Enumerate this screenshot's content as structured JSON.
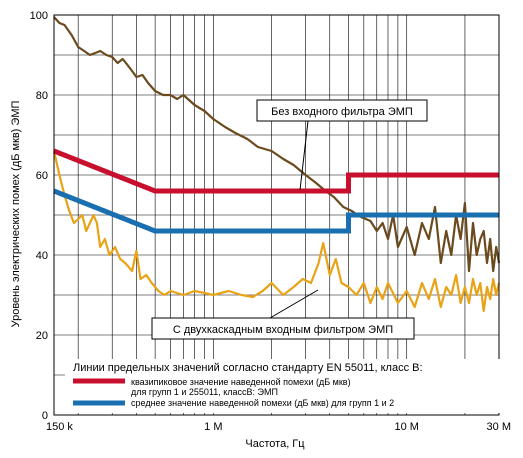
{
  "chart_data": {
    "type": "line",
    "title": "",
    "xlabel": "Частота, Гц",
    "ylabel": "Уровень электрических помех (дБ мкв) ЭМП",
    "x_scale": "log",
    "xlim": [
      150000,
      30000000
    ],
    "ylim": [
      0,
      100
    ],
    "grid": true,
    "x_ticks": [
      {
        "value": 150000,
        "label": "150 k"
      },
      {
        "value": 1000000,
        "label": "1 M"
      },
      {
        "value": 10000000,
        "label": "10 M"
      },
      {
        "value": 30000000,
        "label": "30 M"
      }
    ],
    "y_ticks": [
      {
        "value": 0,
        "label": "0"
      },
      {
        "value": 20,
        "label": "20"
      },
      {
        "value": 40,
        "label": "40"
      },
      {
        "value": 60,
        "label": "60"
      },
      {
        "value": 80,
        "label": "80"
      },
      {
        "value": 100,
        "label": "100"
      }
    ],
    "limit_lines": [
      {
        "name": "квазипиковое значение наведенной помехи (дБ мкв) для групп 1 и 255011, классВ: ЭМП",
        "color": "#c8102e",
        "x": [
          150000,
          500000,
          500000,
          5000000,
          5000000,
          30000000
        ],
        "y": [
          66,
          56,
          56,
          56,
          60,
          60
        ],
        "curve_first_segment": true
      },
      {
        "name": "среднее значение наведенной помехи (дБ мкв) для групп 1 и 2",
        "color": "#1a6fb0",
        "x": [
          150000,
          500000,
          500000,
          5000000,
          5000000,
          30000000
        ],
        "y": [
          56,
          46,
          46,
          46,
          50,
          50
        ],
        "curve_first_segment": true
      }
    ],
    "series": [
      {
        "color": "#6b4a1e",
        "x": [
          150000,
          160000,
          170000,
          185000,
          200000,
          215000,
          230000,
          245000,
          260000,
          280000,
          300000,
          320000,
          340000,
          360000,
          380000,
          400000,
          430000,
          460000,
          500000,
          550000,
          600000,
          650000,
          700000,
          800000,
          900000,
          1000000,
          1150000,
          1300000,
          1500000,
          1700000,
          2000000,
          2300000,
          2600000,
          3000000,
          3400000,
          3800000,
          4200000,
          4700000,
          5200000,
          5800000,
          6500000,
          7000000,
          7500000,
          8000000,
          8500000,
          9000000,
          10000000,
          11000000,
          12000000,
          13000000,
          14000000,
          15000000,
          16000000,
          17000000,
          18000000,
          19000000,
          20000000,
          21000000,
          22000000,
          23000000,
          24000000,
          25000000,
          26000000,
          27000000,
          28000000,
          29000000,
          30000000
        ],
        "y": [
          99.5,
          98,
          97.5,
          95,
          92,
          91,
          90,
          90.5,
          91,
          90,
          89.5,
          88,
          89,
          87.5,
          86,
          84.5,
          85,
          83,
          81,
          80,
          80,
          79,
          80,
          77.5,
          76,
          74,
          72,
          70.5,
          69,
          67,
          66,
          64,
          62.5,
          60,
          58,
          56,
          54.5,
          52,
          51,
          49.5,
          48.5,
          46,
          48,
          44,
          50,
          42,
          47,
          40,
          48,
          44,
          52,
          38,
          46,
          40,
          50,
          44,
          53,
          36,
          48,
          40,
          44,
          46,
          38,
          44,
          36,
          42,
          38
        ]
      },
      {
        "color": "#e8a317",
        "x": [
          150000,
          160000,
          170000,
          180000,
          190000,
          200000,
          210000,
          220000,
          230000,
          240000,
          250000,
          260000,
          275000,
          290000,
          310000,
          330000,
          350000,
          380000,
          400000,
          420000,
          450000,
          480000,
          520000,
          560000,
          600000,
          700000,
          800000,
          900000,
          1000000,
          1200000,
          1400000,
          1600000,
          1800000,
          2000000,
          2300000,
          2600000,
          2900000,
          3200000,
          3500000,
          3700000,
          4000000,
          4300000,
          4600000,
          5000000,
          5500000,
          6000000,
          6500000,
          7000000,
          7500000,
          8000000,
          9000000,
          10000000,
          11000000,
          12000000,
          13000000,
          14000000,
          15000000,
          16000000,
          17000000,
          18000000,
          19000000,
          20000000,
          21000000,
          22000000,
          23000000,
          24000000,
          25000000,
          26000000,
          27000000,
          28000000,
          29000000,
          30000000
        ],
        "y": [
          66,
          60,
          55,
          51,
          48,
          49,
          50,
          46,
          48,
          50,
          48,
          42,
          44,
          40,
          42,
          39,
          38,
          36,
          41,
          34,
          35,
          33,
          31,
          30,
          31,
          30,
          31,
          30.5,
          30,
          31,
          30,
          29.5,
          31,
          33,
          30,
          32,
          34,
          33,
          38,
          43,
          35,
          39,
          33,
          32,
          30,
          33,
          28,
          32,
          29,
          33,
          28,
          31,
          27,
          33,
          29,
          34,
          27,
          32,
          30,
          35,
          28,
          32,
          28,
          34,
          30,
          33,
          26,
          32,
          29,
          34,
          30,
          33
        ]
      }
    ],
    "annotations": [
      {
        "text": "Без входного фильтра ЭМП"
      },
      {
        "text": "С двухкаскадным входным фильтром ЭМП"
      }
    ],
    "legend": {
      "title": "Линии предельных значений согласно стандарту EN 55011, класс В:",
      "items": [
        {
          "label_lines": [
            "квазипиковое значение наведенной помехи (дБ мкв)",
            "для групп 1 и 255011, классВ: ЭМП"
          ],
          "color": "#c8102e"
        },
        {
          "label_lines": [
            "среднее значение наведенной помехи (дБ мкв) для групп 1 и 2"
          ],
          "color": "#1a6fb0"
        }
      ]
    }
  }
}
